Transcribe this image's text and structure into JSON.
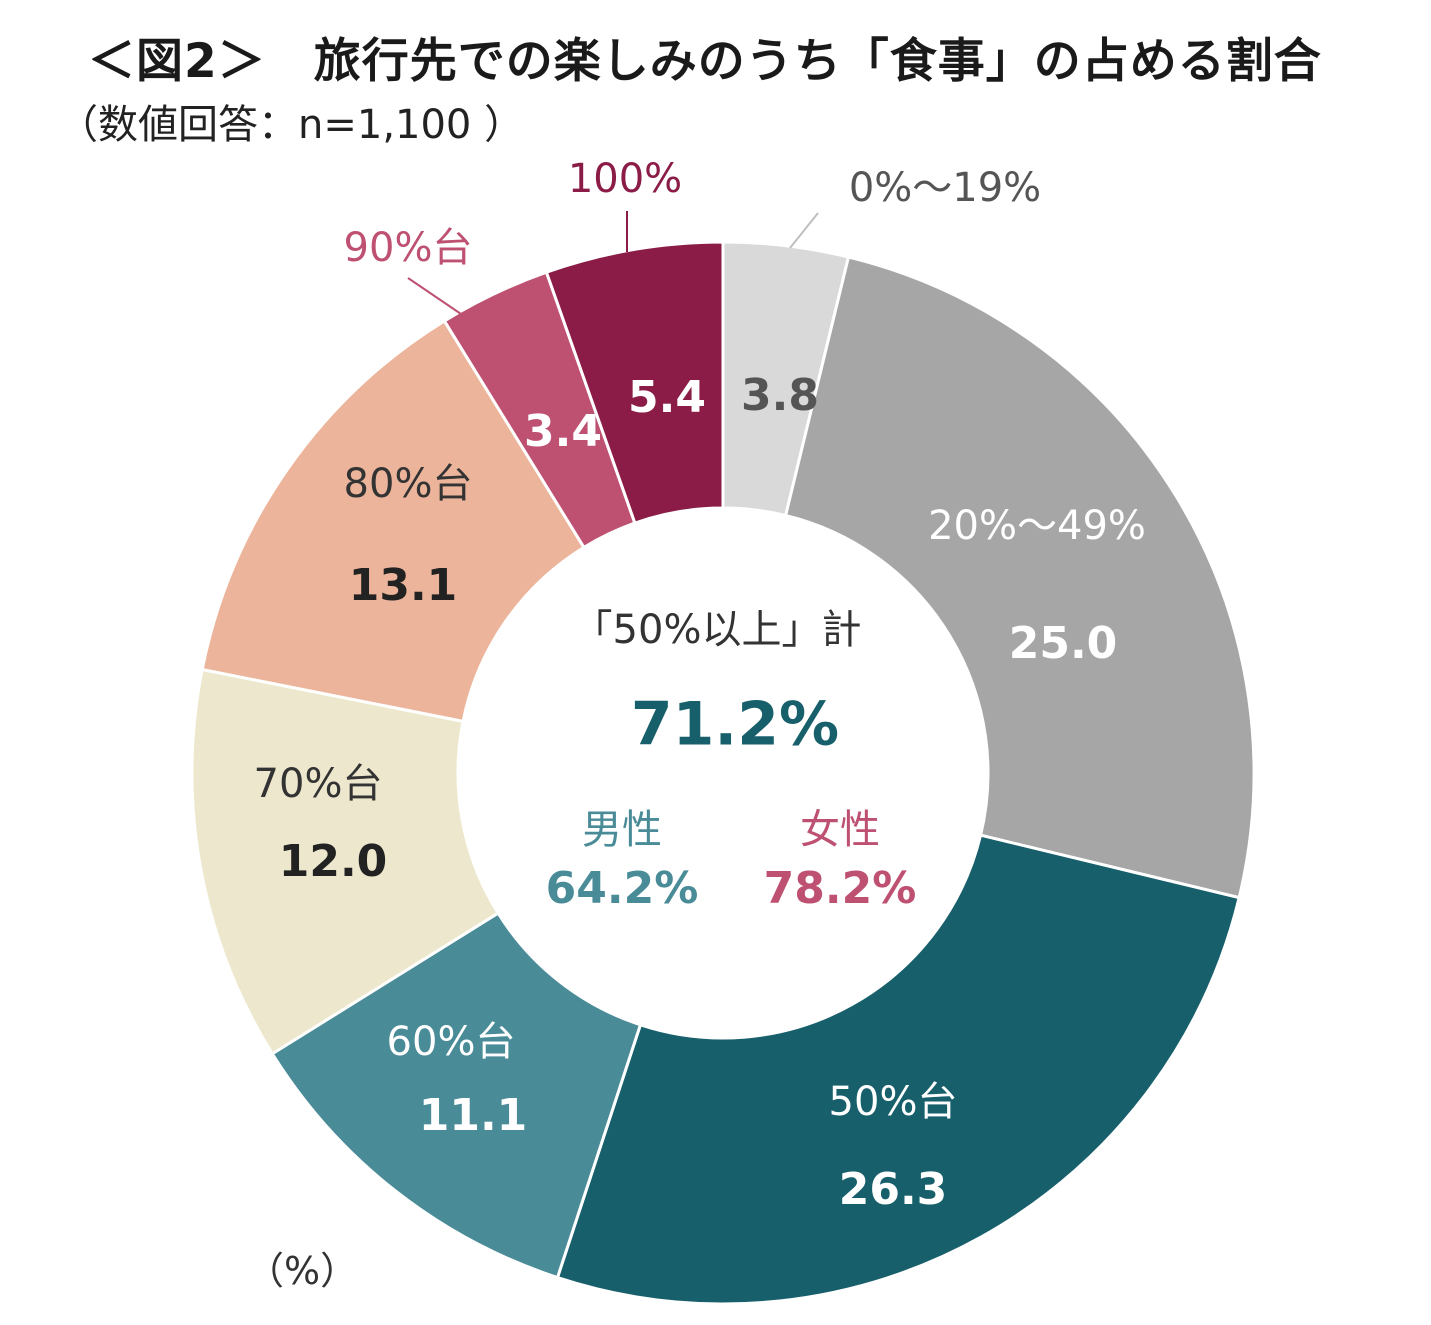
{
  "title": "＜図2＞　旅行先での楽しみのうち「食事」の占める割合",
  "subtitle": "（数値回答：n=1,100 ）",
  "unit_label": "（%）",
  "chart_data": {
    "type": "pie",
    "donut": true,
    "title": "＜図2＞　旅行先での楽しみのうち「食事」の占める割合",
    "subtitle": "（数値回答：n=1,100 ）",
    "unit": "%",
    "slices": [
      {
        "label": "0%～19%",
        "value": 3.8,
        "value_label": "3.8",
        "color": "#d9d9d9",
        "label_color": "#555555",
        "value_color": "#555555"
      },
      {
        "label": "20%～49%",
        "value": 25.0,
        "value_label": "25.0",
        "color": "#a6a6a6",
        "label_color": "#ffffff",
        "value_color": "#ffffff"
      },
      {
        "label": "50%台",
        "value": 26.3,
        "value_label": "26.3",
        "color": "#175f6b",
        "label_color": "#ffffff",
        "value_color": "#ffffff"
      },
      {
        "label": "60%台",
        "value": 11.1,
        "value_label": "11.1",
        "color": "#4a8b98",
        "label_color": "#ffffff",
        "value_color": "#ffffff"
      },
      {
        "label": "70%台",
        "value": 12.0,
        "value_label": "12.0",
        "color": "#ede8cd",
        "label_color": "#333333",
        "value_color": "#222222"
      },
      {
        "label": "80%台",
        "value": 13.1,
        "value_label": "13.1",
        "color": "#ecb59b",
        "label_color": "#333333",
        "value_color": "#222222"
      },
      {
        "label": "90%台",
        "value": 3.4,
        "value_label": "3.4",
        "color": "#be5172",
        "label_color": "#be5172",
        "value_color": "#ffffff"
      },
      {
        "label": "100%",
        "value": 5.4,
        "value_label": "5.4",
        "color": "#8b1c47",
        "label_color": "#8b1c47",
        "value_color": "#ffffff"
      }
    ],
    "center": {
      "label": "「50%以上」計",
      "total": "71.2%",
      "total_color": "#175f6b",
      "male_label": "男性",
      "male_value": "64.2%",
      "male_color": "#4a8b98",
      "female_label": "女性",
      "female_value": "78.2%",
      "female_color": "#be5172"
    }
  }
}
